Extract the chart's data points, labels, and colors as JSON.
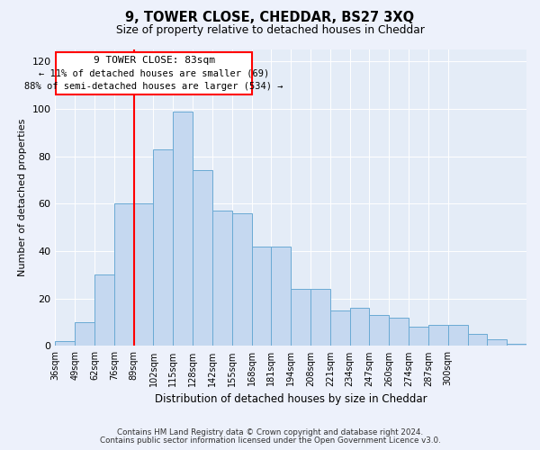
{
  "title": "9, TOWER CLOSE, CHEDDAR, BS27 3XQ",
  "subtitle": "Size of property relative to detached houses in Cheddar",
  "xlabel": "Distribution of detached houses by size in Cheddar",
  "ylabel": "Number of detached properties",
  "bar_color": "#c5d8f0",
  "bar_edge_color": "#6aaad4",
  "bar_heights": [
    2,
    10,
    30,
    60,
    60,
    83,
    99,
    74,
    57,
    56,
    42,
    42,
    24,
    24,
    15,
    16,
    13,
    12,
    8,
    9,
    9,
    5,
    3,
    1
  ],
  "categories": [
    "36sqm",
    "49sqm",
    "62sqm",
    "76sqm",
    "89sqm",
    "102sqm",
    "115sqm",
    "128sqm",
    "142sqm",
    "155sqm",
    "168sqm",
    "181sqm",
    "194sqm",
    "208sqm",
    "221sqm",
    "234sqm",
    "247sqm",
    "260sqm",
    "274sqm",
    "287sqm",
    "300sqm"
  ],
  "ylim": [
    0,
    125
  ],
  "yticks": [
    0,
    20,
    40,
    60,
    80,
    100,
    120
  ],
  "vline_x": 83,
  "vline_bar_index": 4,
  "annotation_title": "9 TOWER CLOSE: 83sqm",
  "annotation_line1": "← 11% of detached houses are smaller (69)",
  "annotation_line2": "88% of semi-detached houses are larger (534) →",
  "footnote1": "Contains HM Land Registry data © Crown copyright and database right 2024.",
  "footnote2": "Contains public sector information licensed under the Open Government Licence v3.0.",
  "bg_color": "#edf1fb",
  "plot_bg_color": "#e4ecf7"
}
